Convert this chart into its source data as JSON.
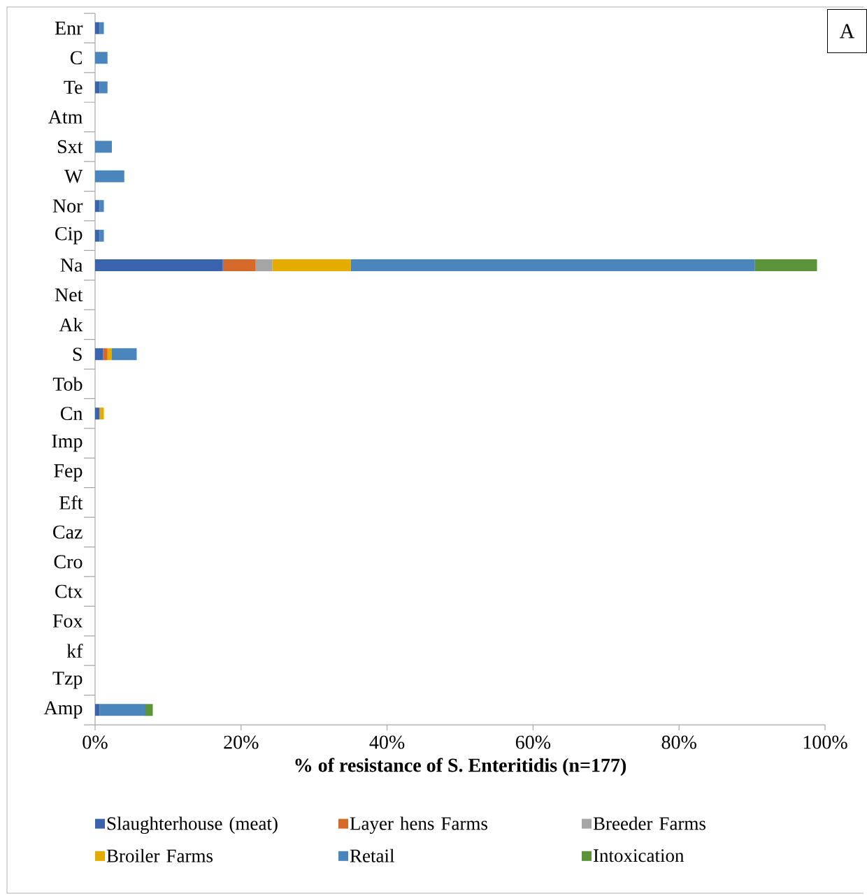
{
  "chart_data": {
    "type": "bar",
    "orientation": "horizontal",
    "stacked": true,
    "categories": [
      "Enr",
      "C",
      "Te",
      "Atm",
      "Sxt",
      "W",
      "Nor",
      "Cip",
      "Na",
      "Net",
      "Ak",
      "S",
      "Tob",
      "Cn",
      "Imp",
      "Fep",
      "Eft",
      "Caz",
      "Cro",
      "Ctx",
      "Fox",
      "kf",
      "Tzp",
      "Amp"
    ],
    "series": [
      {
        "name": "Slaughterhouse (meat)",
        "color": "#3a63ad",
        "values": [
          0.6,
          0,
          0.6,
          0,
          0,
          0,
          0.6,
          0.6,
          17.5,
          0,
          0,
          1.1,
          0,
          0.6,
          0,
          0,
          0,
          0,
          0,
          0,
          0,
          0,
          0,
          0.6
        ]
      },
      {
        "name": "Layer hens Farms",
        "color": "#d4692a",
        "values": [
          0,
          0,
          0,
          0,
          0,
          0,
          0,
          0,
          4.5,
          0,
          0,
          0.6,
          0,
          0,
          0,
          0,
          0,
          0,
          0,
          0,
          0,
          0,
          0,
          0
        ]
      },
      {
        "name": "Breeder Farms",
        "color": "#a5a5a5",
        "values": [
          0,
          0,
          0,
          0,
          0,
          0,
          0,
          0,
          2.3,
          0,
          0,
          0,
          0,
          0,
          0,
          0,
          0,
          0,
          0,
          0,
          0,
          0,
          0,
          0
        ]
      },
      {
        "name": "Broiler Farms",
        "color": "#e5ac00",
        "values": [
          0,
          0,
          0,
          0,
          0,
          0,
          0,
          0,
          10.7,
          0,
          0,
          0.6,
          0,
          0.6,
          0,
          0,
          0,
          0,
          0,
          0,
          0,
          0,
          0,
          0
        ]
      },
      {
        "name": "Retail",
        "color": "#4a86bc",
        "values": [
          0.6,
          1.7,
          1.1,
          0,
          2.3,
          4,
          0.6,
          0.6,
          55.4,
          0,
          0,
          3.4,
          0,
          0,
          0,
          0,
          0,
          0,
          0,
          0,
          0,
          0,
          0,
          6.2
        ]
      },
      {
        "name": "Intoxication",
        "color": "#5b9438",
        "values": [
          0,
          0,
          0,
          0,
          0,
          0,
          0,
          0,
          8.5,
          0,
          0,
          0,
          0,
          0,
          0,
          0,
          0,
          0,
          0,
          0,
          0,
          0,
          0,
          1.1
        ]
      }
    ],
    "xlim": [
      0,
      100
    ],
    "xticks": [
      {
        "value": 0,
        "label": "0%"
      },
      {
        "value": 20,
        "label": "20%"
      },
      {
        "value": 40,
        "label": "40%"
      },
      {
        "value": 60,
        "label": "60%"
      },
      {
        "value": 80,
        "label": "80%"
      },
      {
        "value": 100,
        "label": "100%"
      }
    ],
    "xlabel": "% of resistance of S. Enteritidis (n=177)",
    "annotations": [
      "A"
    ],
    "legend": "bottom",
    "grid": false
  }
}
